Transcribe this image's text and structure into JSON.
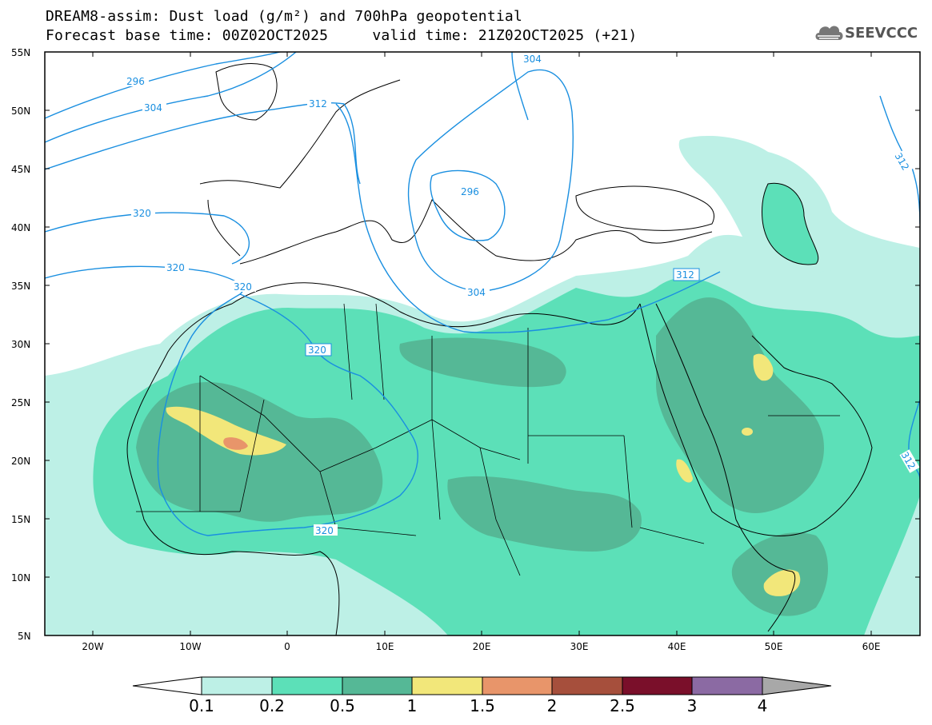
{
  "title": {
    "line1": "DREAM8-assim: Dust load (g/m²) and 700hPa geopotential",
    "line2": "Forecast base time: 00Z02OCT2025     valid time: 21Z02OCT2025 (+21)"
  },
  "logo": {
    "text": "SEEVCCC",
    "icon": "cloud-icon"
  },
  "axes": {
    "lat_labels": [
      "55N",
      "50N",
      "45N",
      "40N",
      "35N",
      "30N",
      "25N",
      "20N",
      "15N",
      "10N",
      "5N"
    ],
    "lon_labels": [
      "20W",
      "10W",
      "0",
      "10E",
      "20E",
      "30E",
      "40E",
      "50E",
      "60E"
    ]
  },
  "contour_labels": [
    "296",
    "304",
    "312",
    "304",
    "320",
    "320",
    "320",
    "320",
    "296",
    "304",
    "312",
    "312",
    "312",
    "320"
  ],
  "colorbar": {
    "labels": [
      "0.1",
      "0.2",
      "0.5",
      "1",
      "1.5",
      "2",
      "2.5",
      "3",
      "4"
    ],
    "colors": [
      "#ffffff",
      "#bdf0e6",
      "#5ce0b8",
      "#55b896",
      "#f2e77a",
      "#e8956a",
      "#a64f3c",
      "#7a0f2a",
      "#8b6aa3",
      "#a8a8a8"
    ]
  },
  "colors": {
    "contour": "#1a8fe0",
    "dust_low": "#bdf0e6",
    "dust_mid": "#5ce0b8",
    "dust_high": "#55b896",
    "dust_1": "#f2e77a",
    "dust_15": "#e8956a"
  }
}
